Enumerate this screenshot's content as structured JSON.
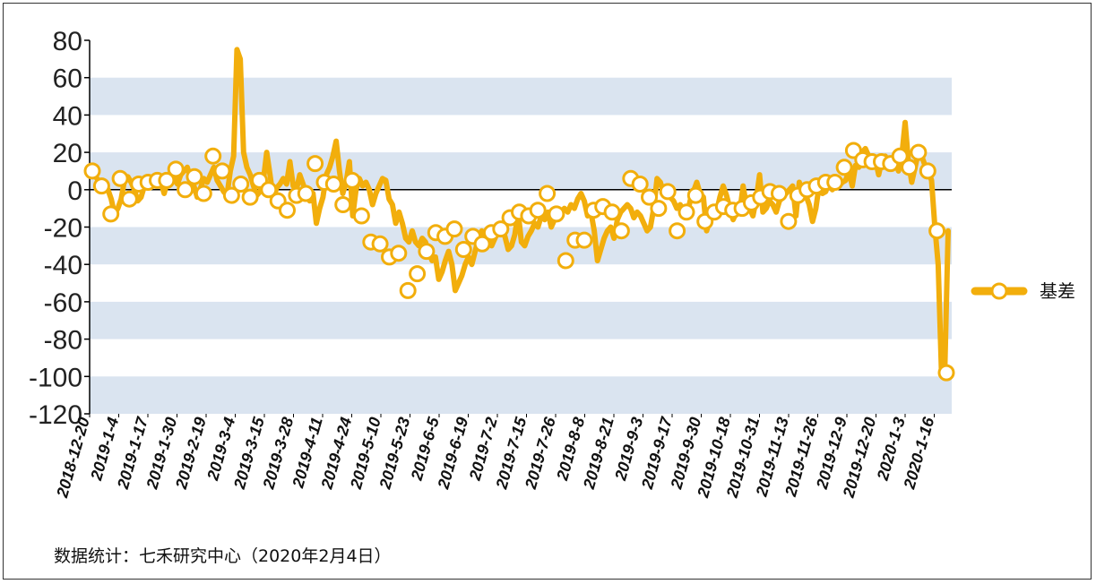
{
  "chart_data": {
    "type": "line",
    "title": "",
    "xlabel": "",
    "ylabel": "",
    "ylim": [
      -120,
      80
    ],
    "yticks": [
      80,
      60,
      40,
      20,
      0,
      -20,
      -40,
      -60,
      -80,
      -100,
      -120
    ],
    "xtick_labels": [
      "2018-12-20",
      "2019-1-4",
      "2019-1-17",
      "2019-1-30",
      "2019-2-19",
      "2019-3-4",
      "2019-3-15",
      "2019-3-28",
      "2019-4-11",
      "2019-4-24",
      "2019-5-10",
      "2019-5-23",
      "2019-6-5",
      "2019-6-19",
      "2019-7-2",
      "2019-7-15",
      "2019-7-26",
      "2019-8-8",
      "2019-8-21",
      "2019-9-3",
      "2019-9-17",
      "2019-9-30",
      "2019-10-18",
      "2019-10-31",
      "2019-11-13",
      "2019-11-26",
      "2019-12-9",
      "2019-12-20",
      "2020-1-3",
      "2020-1-16"
    ],
    "grid": "horizontal bands",
    "legend_position": "right",
    "colors": {
      "series": "#f2ae0c",
      "band": "#dae4f0",
      "marker_fill": "#ffffff",
      "axis": "#000000"
    },
    "series": [
      {
        "name": "基差",
        "line_values": [
          10,
          8,
          5,
          3,
          2,
          0,
          -5,
          -13,
          -10,
          -5,
          5,
          7,
          4,
          0,
          -6,
          -4,
          2,
          4,
          5,
          3,
          6,
          4,
          -2,
          5,
          7,
          6,
          3,
          8,
          10,
          12,
          6,
          2,
          -4,
          1,
          6,
          4,
          8,
          12,
          5,
          2,
          -1,
          -3,
          10,
          18,
          75,
          70,
          20,
          12,
          8,
          2,
          -3,
          -1,
          5,
          20,
          8,
          -5,
          1,
          3,
          6,
          3,
          15,
          2,
          0,
          8,
          3,
          -2,
          -6,
          -2,
          -18,
          -10,
          -4,
          8,
          12,
          18,
          26,
          10,
          -2,
          4,
          15,
          -14,
          0,
          6,
          2,
          4,
          0,
          -8,
          -2,
          2,
          6,
          5,
          -5,
          -8,
          -18,
          -12,
          -18,
          -26,
          -28,
          -22,
          -28,
          -30,
          -26,
          -28,
          -34,
          -38,
          -36,
          -48,
          -44,
          -38,
          -33,
          -40,
          -54,
          -50,
          -46,
          -40,
          -36,
          -40,
          -33,
          -26,
          -22,
          -24,
          -28,
          -30,
          -26,
          -22,
          -20,
          -25,
          -32,
          -30,
          -24,
          -12,
          -28,
          -30,
          -25,
          -22,
          -18,
          -20,
          -14,
          -16,
          -12,
          -20,
          -16,
          -14,
          -12,
          -10,
          -12,
          -8,
          -10,
          -5,
          -2,
          -6,
          -14,
          -12,
          -22,
          -38,
          -32,
          -26,
          -22,
          -20,
          -26,
          -16,
          -12,
          -10,
          -8,
          -10,
          -15,
          -12,
          -14,
          -18,
          -22,
          -20,
          -10,
          6,
          4,
          -2,
          2,
          -4,
          -6,
          -10,
          -8,
          -12,
          -14,
          -6,
          -1,
          4,
          -2,
          -4,
          -22,
          -16,
          -10,
          -12,
          -4,
          2,
          -3,
          -10,
          -16,
          -12,
          -12,
          2,
          -8,
          -10,
          -14,
          -5,
          8,
          -12,
          -10,
          -6,
          -8,
          -12,
          -6,
          -4,
          -2,
          0,
          2,
          -14,
          4,
          -2,
          -3,
          -8,
          -17,
          -10,
          2,
          -2,
          -1,
          4,
          0,
          2,
          2,
          4,
          5,
          10,
          2,
          13,
          12,
          20,
          22,
          18,
          15,
          16,
          8,
          16,
          18,
          14,
          13,
          15,
          10,
          18,
          36,
          15,
          4,
          12,
          20,
          18,
          13,
          10,
          5,
          -20,
          -40,
          -98,
          -96,
          -22
        ],
        "marker_values": [
          10,
          2,
          -13,
          6,
          -5,
          3,
          4,
          5,
          5,
          11,
          0,
          7,
          -2,
          18,
          10,
          -3,
          3,
          -4,
          5,
          0,
          -6,
          -11,
          -3,
          -2,
          14,
          4,
          3,
          -8,
          5,
          -14,
          -28,
          -29,
          -36,
          -34,
          -54,
          -45,
          -33,
          -23,
          -25,
          -21,
          -32,
          -25,
          -29,
          -23,
          -21,
          -15,
          -12,
          -14,
          -11,
          -2,
          -13,
          -38,
          -27,
          -27,
          -11,
          -9,
          -12,
          -22,
          6,
          3,
          -4,
          -10,
          -1,
          -22,
          -12,
          -3,
          -17,
          -12,
          -9,
          -11,
          -10,
          -7,
          -4,
          -1,
          -2,
          -17,
          -3,
          0,
          2,
          4,
          4,
          12,
          21,
          16,
          15,
          15,
          14,
          18,
          12,
          20,
          10,
          -22,
          -98
        ]
      }
    ]
  },
  "footer": {
    "source_text": "数据统计：七禾研究中心（2020年2月4日）"
  }
}
